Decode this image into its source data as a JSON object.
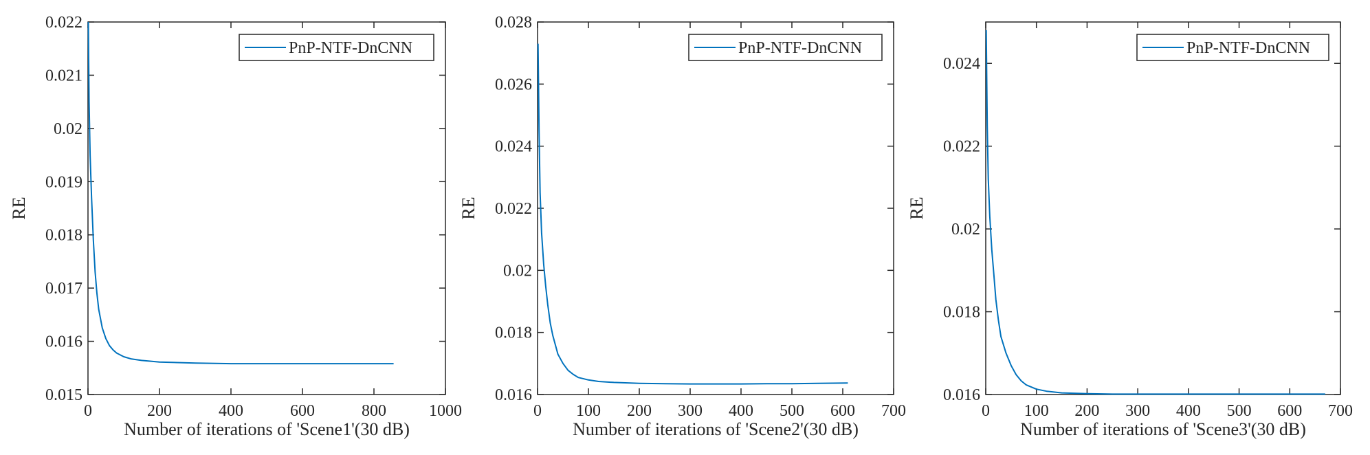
{
  "chart_data": [
    {
      "type": "line",
      "xlabel": "Number of iterations of 'Scene1'(30 dB)",
      "ylabel": "RE",
      "xlim": [
        0,
        1000
      ],
      "ylim": [
        0.015,
        0.022
      ],
      "xticks": [
        "0",
        "200",
        "400",
        "600",
        "800",
        "1000"
      ],
      "yticks": [
        "0.015",
        "0.016",
        "0.017",
        "0.018",
        "0.019",
        "0.02",
        "0.021",
        "0.022"
      ],
      "grid": false,
      "legend_position": "top-right",
      "series": [
        {
          "name": "PnP-NTF-DnCNN",
          "color": "#0072BD",
          "x": [
            1,
            3,
            6,
            10,
            15,
            20,
            25,
            30,
            40,
            50,
            60,
            70,
            80,
            100,
            120,
            150,
            200,
            250,
            300,
            400,
            500,
            600,
            700,
            800,
            855
          ],
          "y": [
            0.022,
            0.0205,
            0.0195,
            0.0187,
            0.0179,
            0.0173,
            0.0169,
            0.0166,
            0.01625,
            0.01605,
            0.01592,
            0.01584,
            0.01578,
            0.01571,
            0.01567,
            0.01564,
            0.01561,
            0.0156,
            0.01559,
            0.01558,
            0.01558,
            0.01558,
            0.01558,
            0.01558,
            0.01558
          ]
        }
      ]
    },
    {
      "type": "line",
      "xlabel": "Number of iterations of 'Scene2'(30 dB)",
      "ylabel": "RE",
      "xlim": [
        0,
        700
      ],
      "ylim": [
        0.016,
        0.028
      ],
      "xticks": [
        "0",
        "100",
        "200",
        "300",
        "400",
        "500",
        "600",
        "700"
      ],
      "yticks": [
        "0.016",
        "0.018",
        "0.02",
        "0.022",
        "0.024",
        "0.026",
        "0.028"
      ],
      "grid": false,
      "legend_position": "top-right",
      "series": [
        {
          "name": "PnP-NTF-DnCNN",
          "color": "#0072BD",
          "x": [
            1,
            3,
            5,
            8,
            12,
            16,
            20,
            25,
            30,
            40,
            50,
            60,
            70,
            80,
            100,
            120,
            150,
            200,
            250,
            300,
            350,
            400,
            450,
            500,
            550,
            610
          ],
          "y": [
            0.0273,
            0.0245,
            0.0225,
            0.0212,
            0.0202,
            0.0195,
            0.0189,
            0.0183,
            0.0179,
            0.0173,
            0.017,
            0.01678,
            0.01665,
            0.01655,
            0.01647,
            0.01642,
            0.01639,
            0.01636,
            0.01635,
            0.01634,
            0.01634,
            0.01634,
            0.01635,
            0.01635,
            0.01636,
            0.01637
          ]
        }
      ]
    },
    {
      "type": "line",
      "xlabel": "Number of iterations of 'Scene3'(30 dB)",
      "ylabel": "RE",
      "xlim": [
        0,
        700
      ],
      "ylim": [
        0.016,
        0.025
      ],
      "xticks": [
        "0",
        "100",
        "200",
        "300",
        "400",
        "500",
        "600",
        "700"
      ],
      "yticks": [
        "0.016",
        "0.018",
        "0.02",
        "0.022",
        "0.024"
      ],
      "grid": false,
      "legend_position": "top-right",
      "series": [
        {
          "name": "PnP-NTF-DnCNN",
          "color": "#0072BD",
          "x": [
            1,
            3,
            5,
            8,
            12,
            16,
            20,
            25,
            30,
            40,
            50,
            60,
            70,
            80,
            100,
            120,
            150,
            200,
            250,
            300,
            400,
            500,
            600,
            670
          ],
          "y": [
            0.0248,
            0.0225,
            0.0212,
            0.0203,
            0.0195,
            0.0189,
            0.0183,
            0.0178,
            0.0174,
            0.017,
            0.0167,
            0.01648,
            0.01633,
            0.01623,
            0.01613,
            0.01608,
            0.01604,
            0.01602,
            0.01601,
            0.01601,
            0.01601,
            0.01601,
            0.01601,
            0.01601
          ]
        }
      ]
    }
  ]
}
